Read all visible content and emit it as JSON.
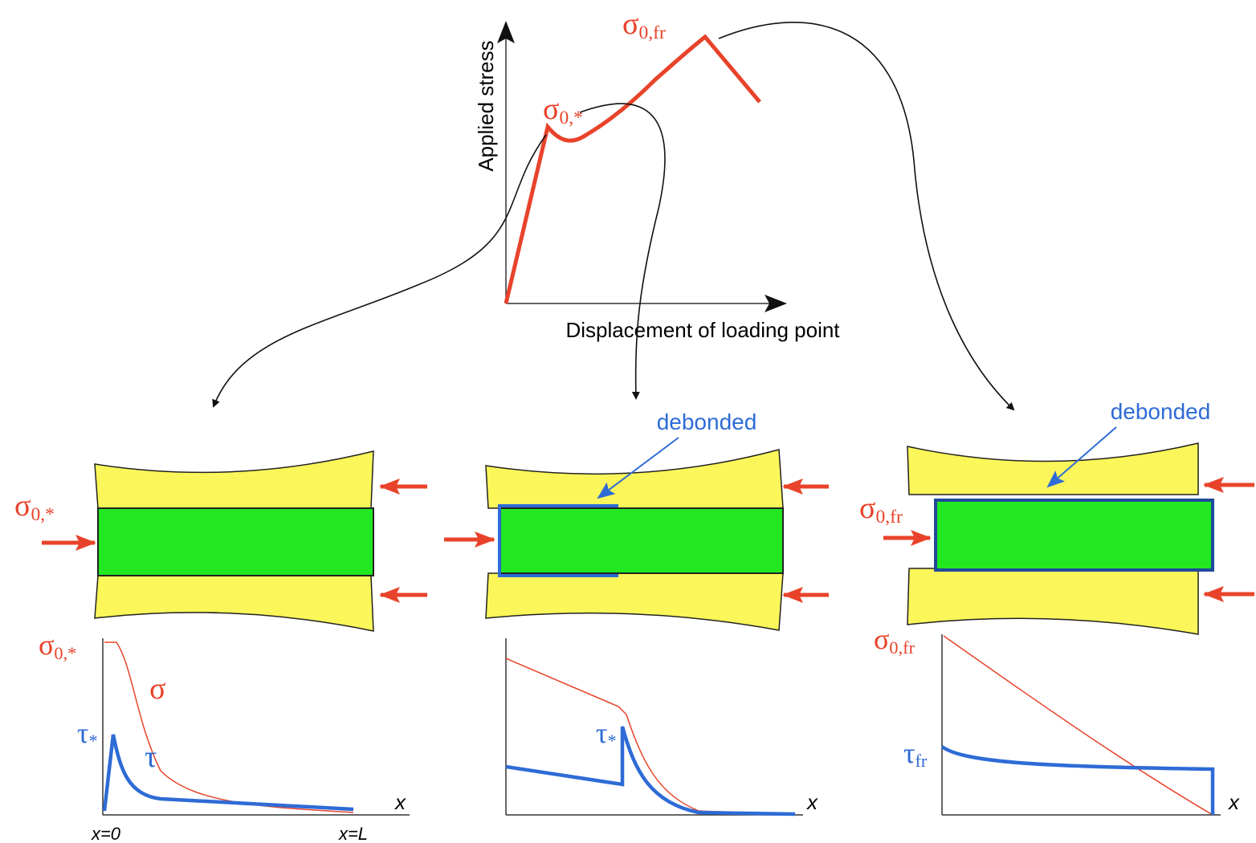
{
  "graph": {
    "y_axis_label": "Applied stress",
    "x_axis_label": "Displacement of loading point",
    "peak_label": {
      "symbol": "σ",
      "subscript": "0,*"
    },
    "max_label": {
      "symbol": "σ",
      "subscript": "0,fr"
    }
  },
  "panels": [
    {
      "load_label": {
        "symbol": "σ",
        "subscript": "0,*"
      },
      "curve_max_label": {
        "symbol": "σ",
        "subscript": "0,*"
      },
      "sigma_label": "σ",
      "tau_peak_label": {
        "symbol": "τ",
        "subscript": "*"
      },
      "tau_label": "τ",
      "x_label": "x",
      "x_start": "x=0",
      "x_end": "x=L"
    },
    {
      "debonded_label": "debonded",
      "tau_peak_label": {
        "symbol": "τ",
        "subscript": "*"
      },
      "x_label": "x"
    },
    {
      "debonded_label": "debonded",
      "load_label": {
        "symbol": "σ",
        "subscript": "0,fr"
      },
      "curve_max_label": {
        "symbol": "σ",
        "subscript": "0,fr"
      },
      "tau_peak_label": {
        "symbol": "τ",
        "subscript": "fr"
      },
      "x_label": "x"
    }
  ]
}
